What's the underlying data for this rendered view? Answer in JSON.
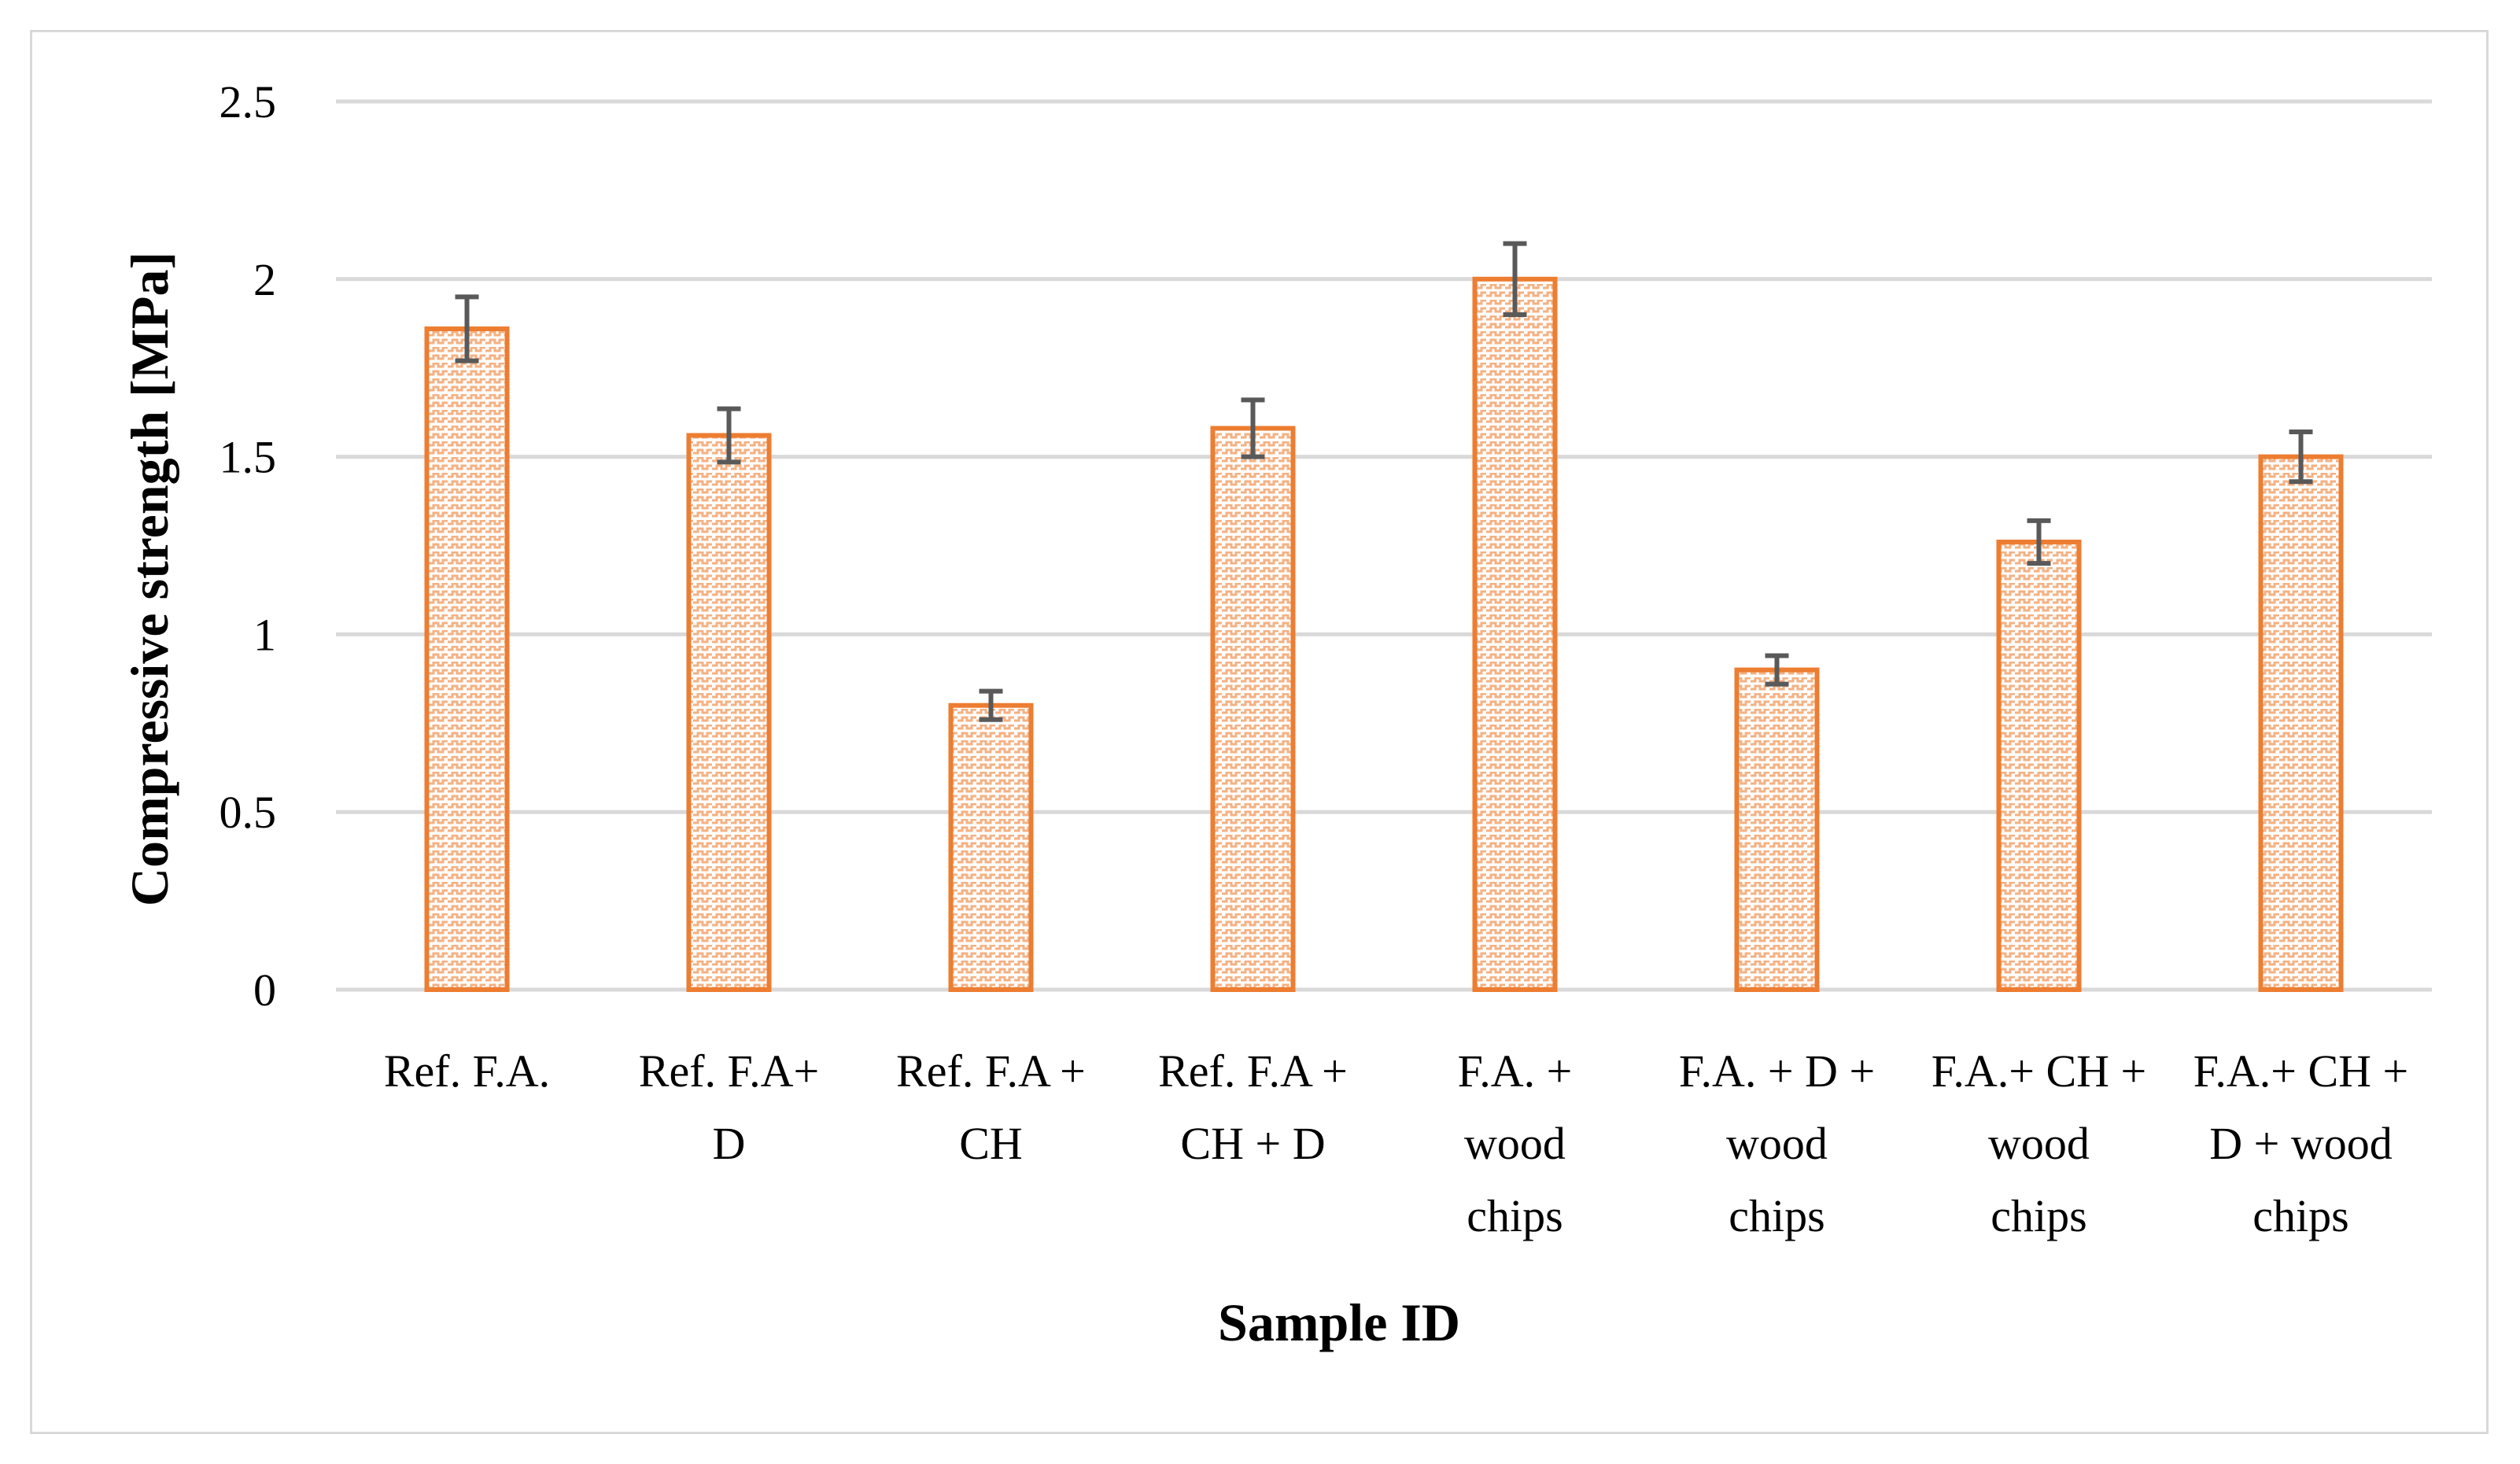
{
  "chart_data": {
    "type": "bar",
    "title": "",
    "xlabel": "Sample ID",
    "ylabel": "Compressive strength [MPa]",
    "ylim": [
      0,
      2.5
    ],
    "yticks": [
      "0",
      "0.5",
      "1",
      "1.5",
      "2",
      "2.5"
    ],
    "grid": true,
    "legend": "none",
    "categories": [
      [
        "Ref. F.A."
      ],
      [
        "Ref. F.A+",
        "D"
      ],
      [
        "Ref. F.A +",
        "CH"
      ],
      [
        "Ref. F.A +",
        "CH + D"
      ],
      [
        "F.A. +",
        "wood",
        "chips"
      ],
      [
        "F.A. + D +",
        "wood",
        "chips"
      ],
      [
        "F.A.+ CH +",
        "wood",
        "chips"
      ],
      [
        "F.A.+ CH +",
        "D + wood",
        "chips"
      ]
    ],
    "series": [
      {
        "name": "Compressive strength",
        "values": [
          1.86,
          1.56,
          0.8,
          1.58,
          2.0,
          0.9,
          1.26,
          1.5
        ],
        "error": [
          0.09,
          0.075,
          0.04,
          0.08,
          0.1,
          0.04,
          0.06,
          0.07
        ]
      }
    ],
    "colors": {
      "bar_border": "#ED7D31",
      "bar_pattern": "#F4B183",
      "error_bar": "#595959",
      "grid": "#d9d9d9"
    }
  }
}
